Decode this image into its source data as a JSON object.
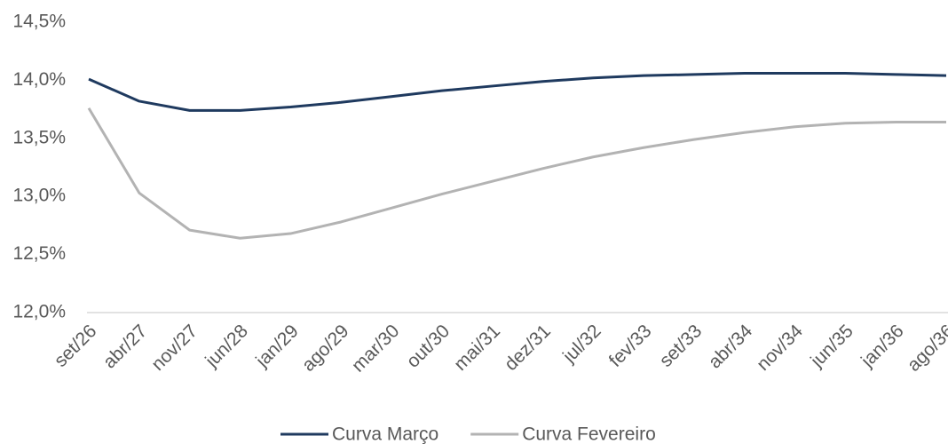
{
  "chart_data": {
    "type": "line",
    "categories": [
      "set/26",
      "abr/27",
      "nov/27",
      "jun/28",
      "jan/29",
      "ago/29",
      "mar/30",
      "out/30",
      "mai/31",
      "dez/31",
      "jul/32",
      "fev/33",
      "set/33",
      "abr/34",
      "nov/34",
      "jun/35",
      "jan/36",
      "ago/36"
    ],
    "series": [
      {
        "name": "Curva Março",
        "color": "#1f3a5f",
        "values": [
          14.01,
          13.82,
          13.74,
          13.74,
          13.77,
          13.81,
          13.86,
          13.91,
          13.95,
          13.99,
          14.02,
          14.04,
          14.05,
          14.06,
          14.06,
          14.06,
          14.05,
          14.04
        ]
      },
      {
        "name": "Curva Fevereiro",
        "color": "#b3b3b3",
        "values": [
          13.76,
          13.03,
          12.71,
          12.64,
          12.68,
          12.78,
          12.9,
          13.02,
          13.13,
          13.24,
          13.34,
          13.42,
          13.49,
          13.55,
          13.6,
          13.63,
          13.64,
          13.64
        ]
      }
    ],
    "ylim": [
      12.0,
      14.5
    ],
    "yticks": [
      {
        "value": 12.0,
        "label": "12,0%"
      },
      {
        "value": 12.5,
        "label": "12,5%"
      },
      {
        "value": 13.0,
        "label": "13,0%"
      },
      {
        "value": 13.5,
        "label": "13,5%"
      },
      {
        "value": 14.0,
        "label": "14,0%"
      },
      {
        "value": 14.5,
        "label": "14,5%"
      }
    ],
    "legend": "bottom"
  }
}
